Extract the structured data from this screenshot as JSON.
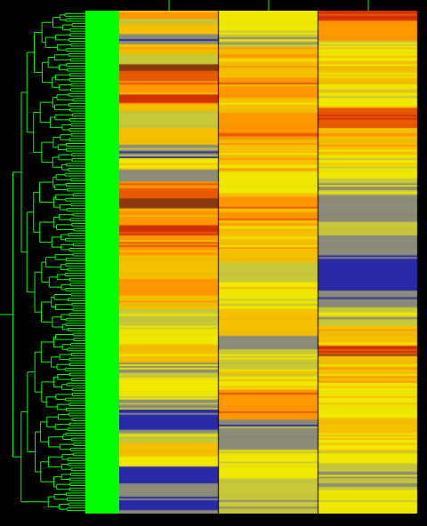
{
  "viewer": {
    "background": "#000000",
    "dendrogram_color": "#00ff00",
    "columns": 3,
    "rows": 300
  },
  "palette": {
    "blue": "#2a2aa8",
    "grey": "#8c8c7a",
    "olive": "#c8c83a",
    "yellow": "#f0e800",
    "lightorange": "#f5c000",
    "orange": "#ff9800",
    "darkorange": "#e85a00",
    "red": "#d23200",
    "brown": "#8a3a10"
  },
  "heatmap_bands": [
    [
      {
        "from": 0,
        "to": 5,
        "c": "orange"
      },
      {
        "from": 5,
        "to": 8,
        "c": "olive"
      },
      {
        "from": 8,
        "to": 14,
        "c": "lightorange"
      },
      {
        "from": 14,
        "to": 20,
        "c": "grey"
      },
      {
        "from": 20,
        "to": 26,
        "c": "lightorange"
      },
      {
        "from": 26,
        "to": 32,
        "c": "olive"
      },
      {
        "from": 32,
        "to": 36,
        "c": "brown"
      },
      {
        "from": 36,
        "to": 44,
        "c": "darkorange"
      },
      {
        "from": 44,
        "to": 50,
        "c": "orange"
      },
      {
        "from": 50,
        "to": 55,
        "c": "red"
      },
      {
        "from": 55,
        "to": 60,
        "c": "lightorange"
      },
      {
        "from": 60,
        "to": 70,
        "c": "olive"
      },
      {
        "from": 70,
        "to": 80,
        "c": "lightorange"
      },
      {
        "from": 80,
        "to": 88,
        "c": "grey"
      },
      {
        "from": 88,
        "to": 95,
        "c": "yellow"
      },
      {
        "from": 95,
        "to": 102,
        "c": "grey"
      },
      {
        "from": 102,
        "to": 112,
        "c": "darkorange"
      },
      {
        "from": 112,
        "to": 118,
        "c": "brown"
      },
      {
        "from": 118,
        "to": 128,
        "c": "orange"
      },
      {
        "from": 128,
        "to": 134,
        "c": "red"
      },
      {
        "from": 134,
        "to": 146,
        "c": "orange"
      },
      {
        "from": 146,
        "to": 160,
        "c": "lightorange"
      },
      {
        "from": 160,
        "to": 170,
        "c": "orange"
      },
      {
        "from": 170,
        "to": 178,
        "c": "lightorange"
      },
      {
        "from": 178,
        "to": 188,
        "c": "olive"
      },
      {
        "from": 188,
        "to": 198,
        "c": "yellow"
      },
      {
        "from": 198,
        "to": 210,
        "c": "lightorange"
      },
      {
        "from": 210,
        "to": 220,
        "c": "olive"
      },
      {
        "from": 220,
        "to": 232,
        "c": "yellow"
      },
      {
        "from": 232,
        "to": 238,
        "c": "grey"
      },
      {
        "from": 238,
        "to": 250,
        "c": "blue"
      },
      {
        "from": 250,
        "to": 258,
        "c": "olive"
      },
      {
        "from": 258,
        "to": 266,
        "c": "lightorange"
      },
      {
        "from": 266,
        "to": 272,
        "c": "yellow"
      },
      {
        "from": 272,
        "to": 282,
        "c": "blue"
      },
      {
        "from": 282,
        "to": 290,
        "c": "grey"
      },
      {
        "from": 290,
        "to": 298,
        "c": "blue"
      },
      {
        "from": 298,
        "to": 300,
        "c": "grey"
      }
    ],
    [
      {
        "from": 0,
        "to": 12,
        "c": "yellow"
      },
      {
        "from": 12,
        "to": 22,
        "c": "olive"
      },
      {
        "from": 22,
        "to": 40,
        "c": "lightorange"
      },
      {
        "from": 40,
        "to": 52,
        "c": "orange"
      },
      {
        "from": 52,
        "to": 62,
        "c": "lightorange"
      },
      {
        "from": 62,
        "to": 80,
        "c": "orange"
      },
      {
        "from": 80,
        "to": 96,
        "c": "lightorange"
      },
      {
        "from": 96,
        "to": 110,
        "c": "yellow"
      },
      {
        "from": 110,
        "to": 128,
        "c": "orange"
      },
      {
        "from": 128,
        "to": 150,
        "c": "lightorange"
      },
      {
        "from": 150,
        "to": 162,
        "c": "olive"
      },
      {
        "from": 162,
        "to": 178,
        "c": "yellow"
      },
      {
        "from": 178,
        "to": 194,
        "c": "lightorange"
      },
      {
        "from": 194,
        "to": 202,
        "c": "grey"
      },
      {
        "from": 202,
        "to": 214,
        "c": "olive"
      },
      {
        "from": 214,
        "to": 226,
        "c": "yellow"
      },
      {
        "from": 226,
        "to": 244,
        "c": "orange"
      },
      {
        "from": 244,
        "to": 262,
        "c": "grey"
      },
      {
        "from": 262,
        "to": 280,
        "c": "yellow"
      },
      {
        "from": 280,
        "to": 300,
        "c": "olive"
      }
    ],
    [
      {
        "from": 0,
        "to": 6,
        "c": "red"
      },
      {
        "from": 6,
        "to": 18,
        "c": "orange"
      },
      {
        "from": 18,
        "to": 30,
        "c": "yellow"
      },
      {
        "from": 30,
        "to": 44,
        "c": "lightorange"
      },
      {
        "from": 44,
        "to": 58,
        "c": "yellow"
      },
      {
        "from": 58,
        "to": 70,
        "c": "darkorange"
      },
      {
        "from": 70,
        "to": 86,
        "c": "lightorange"
      },
      {
        "from": 86,
        "to": 100,
        "c": "yellow"
      },
      {
        "from": 100,
        "to": 110,
        "c": "olive"
      },
      {
        "from": 110,
        "to": 126,
        "c": "grey"
      },
      {
        "from": 126,
        "to": 134,
        "c": "olive"
      },
      {
        "from": 134,
        "to": 148,
        "c": "grey"
      },
      {
        "from": 148,
        "to": 166,
        "c": "blue"
      },
      {
        "from": 166,
        "to": 176,
        "c": "grey"
      },
      {
        "from": 176,
        "to": 188,
        "c": "olive"
      },
      {
        "from": 188,
        "to": 200,
        "c": "lightorange"
      },
      {
        "from": 200,
        "to": 206,
        "c": "red"
      },
      {
        "from": 206,
        "to": 222,
        "c": "lightorange"
      },
      {
        "from": 222,
        "to": 242,
        "c": "yellow"
      },
      {
        "from": 242,
        "to": 256,
        "c": "lightorange"
      },
      {
        "from": 256,
        "to": 270,
        "c": "yellow"
      },
      {
        "from": 270,
        "to": 286,
        "c": "olive"
      },
      {
        "from": 286,
        "to": 300,
        "c": "yellow"
      }
    ]
  ]
}
